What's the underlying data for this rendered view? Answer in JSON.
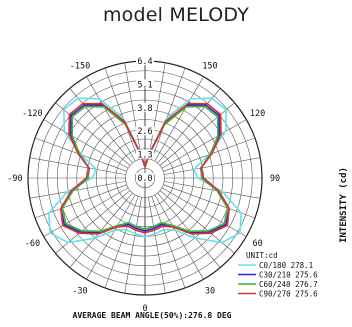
{
  "title": "model MELODY",
  "chart_data": {
    "type": "polar",
    "title": "model MELODY",
    "radial_axis_label": "INTENSITY (cd)",
    "radial_ticks": [
      "0.0",
      "1.3",
      "2.6",
      "3.8",
      "5.1",
      "6.4"
    ],
    "rlim": [
      0,
      6.4
    ],
    "angle_ticks": [
      "-150",
      "150",
      "-120",
      "120",
      "-90",
      "90",
      "-60",
      "60",
      "-30",
      "30",
      "0"
    ],
    "angles": [
      180,
      170,
      160,
      150,
      140,
      130,
      120,
      110,
      100,
      90,
      80,
      70,
      60,
      50,
      40,
      30,
      20,
      10,
      0
    ],
    "series": [
      {
        "name": "C0/180 278.1",
        "values": [
          0.6,
          1.4,
          3.5,
          5.0,
          5.7,
          5.8,
          5.1,
          3.7,
          2.7,
          2.9,
          4.3,
          5.6,
          6.0,
          5.5,
          4.3,
          3.3,
          3.0,
          3.1,
          3.2
        ]
      },
      {
        "name": "C30/210 275.6",
        "values": [
          0.6,
          1.3,
          3.2,
          4.6,
          5.2,
          5.3,
          4.7,
          3.8,
          3.1,
          3.2,
          4.1,
          4.9,
          5.1,
          4.6,
          3.9,
          3.0,
          2.7,
          2.8,
          2.9
        ]
      },
      {
        "name": "C60/240 276.7",
        "values": [
          0.6,
          1.3,
          3.1,
          4.5,
          5.1,
          5.2,
          4.6,
          3.8,
          3.1,
          3.1,
          4.0,
          4.8,
          5.0,
          4.5,
          3.8,
          3.0,
          2.6,
          2.7,
          2.8
        ]
      },
      {
        "name": "C90/270 275.6",
        "values": [
          0.6,
          1.3,
          3.3,
          4.7,
          5.3,
          5.4,
          4.8,
          3.9,
          3.1,
          3.2,
          4.1,
          4.9,
          5.2,
          4.7,
          4.0,
          3.1,
          2.8,
          2.9,
          3.0
        ]
      }
    ],
    "series_colors": [
      "#66e0ee",
      "#2a2ad0",
      "#3cb43c",
      "#e03030"
    ],
    "unit_label": "UNIT:cd",
    "footer": "AVERAGE BEAM ANGLE(50%):276.8 DEG",
    "grid": true,
    "legend_position": "bottom-right"
  }
}
